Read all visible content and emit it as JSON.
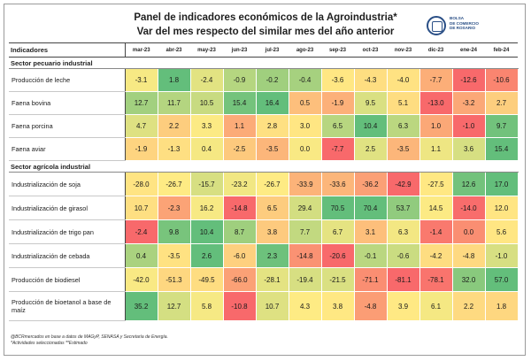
{
  "header": {
    "title_line1": "Panel de indicadores económicos de la Agroindustria*",
    "title_line2": "Var del mes respecto del similar mes del año anterior",
    "logo_lines": [
      "BOLSA",
      "DE COMERCIO",
      "DE ROSARIO"
    ]
  },
  "table": {
    "corner_label": "Indicadores",
    "columns": [
      "mar-23",
      "abr-23",
      "may-23",
      "jun-23",
      "jul-23",
      "ago-23",
      "sep-23",
      "oct-23",
      "nov-23",
      "dic-23",
      "ene-24",
      "feb-24"
    ],
    "sections": [
      {
        "title": "Sector pecuario industrial",
        "rows": [
          {
            "label": "Producción de leche",
            "values": [
              "-3.1",
              "1.8",
              "-2.4",
              "-0.9",
              "-0.2",
              "-0.4",
              "-3.6",
              "-4.3",
              "-4.0",
              "-7.7",
              "-12.6",
              "-10.6"
            ]
          },
          {
            "label": "Faena bovina",
            "values": [
              "12.7",
              "11.7",
              "10.5",
              "15.4",
              "16.4",
              "0.5",
              "-1.9",
              "9.5",
              "5.1",
              "-13.0",
              "-3.2",
              "2.7"
            ]
          },
          {
            "label": "Faena porcina",
            "values": [
              "4.7",
              "2.2",
              "3.3",
              "1.1",
              "2.8",
              "3.0",
              "6.5",
              "10.4",
              "6.3",
              "1.0",
              "-1.0",
              "9.7"
            ]
          },
          {
            "label": "Faena aviar",
            "values": [
              "-1.9",
              "-1.3",
              "0.4",
              "-2.5",
              "-3.5",
              "0.0",
              "-7.7",
              "2.5",
              "-3.5",
              "1.1",
              "3.6",
              "15.4"
            ]
          }
        ]
      },
      {
        "title": "Sector agrícola industrial",
        "rows": [
          {
            "label": "Industrialización de soja",
            "values": [
              "-28.0",
              "-26.7",
              "-15.7",
              "-23.2",
              "-26.7",
              "-33.9",
              "-33.6",
              "-36.2",
              "-42.9",
              "-27.5",
              "12.6",
              "17.0"
            ]
          },
          {
            "label": "Industrialización de girasol",
            "values": [
              "10.7",
              "-2.3",
              "16.2",
              "-14.8",
              "6.5",
              "29.4",
              "70.5",
              "70.4",
              "53.7",
              "14.5",
              "-14.0",
              "12.0"
            ]
          },
          {
            "label": "Industrialización de trigo pan",
            "values": [
              "-2.4",
              "9.8",
              "10.4",
              "8.7",
              "3.8",
              "7.7",
              "6.7",
              "3.1",
              "6.3",
              "-1.4",
              "0.0",
              "5.6"
            ]
          },
          {
            "label": "Industrialización de cebada",
            "values": [
              "0.4",
              "-3.5",
              "2.6",
              "-6.0",
              "2.3",
              "-14.8",
              "-20.6",
              "-0.1",
              "-0.6",
              "-4.2",
              "-4.8",
              "-1.0"
            ]
          },
          {
            "label": "Producción de biodiesel",
            "values": [
              "-42.0",
              "-51.3",
              "-49.5",
              "-66.0",
              "-28.1",
              "-19.4",
              "-21.5",
              "-71.1",
              "-81.1",
              "-78.1",
              "32.0",
              "57.0"
            ]
          },
          {
            "label": "Producción de bioetanol a base de maíz",
            "values": [
              "35.2",
              "12.7",
              "5.8",
              "-10.8",
              "10.7",
              "4.3",
              "3.8",
              "-4.8",
              "3.9",
              "6.1",
              "2.2",
              "1.8"
            ]
          }
        ]
      }
    ]
  },
  "footnote": {
    "line1": "@BCRmercados en base a datos de MAGyP, SENASA y Secretaría de Energía.",
    "line2": "*Actividades seleccionadas  **Estimado"
  },
  "colors": {
    "strong_negative": "#f8696b",
    "neutral": "#ffeb84",
    "strong_positive": "#63be7b"
  }
}
